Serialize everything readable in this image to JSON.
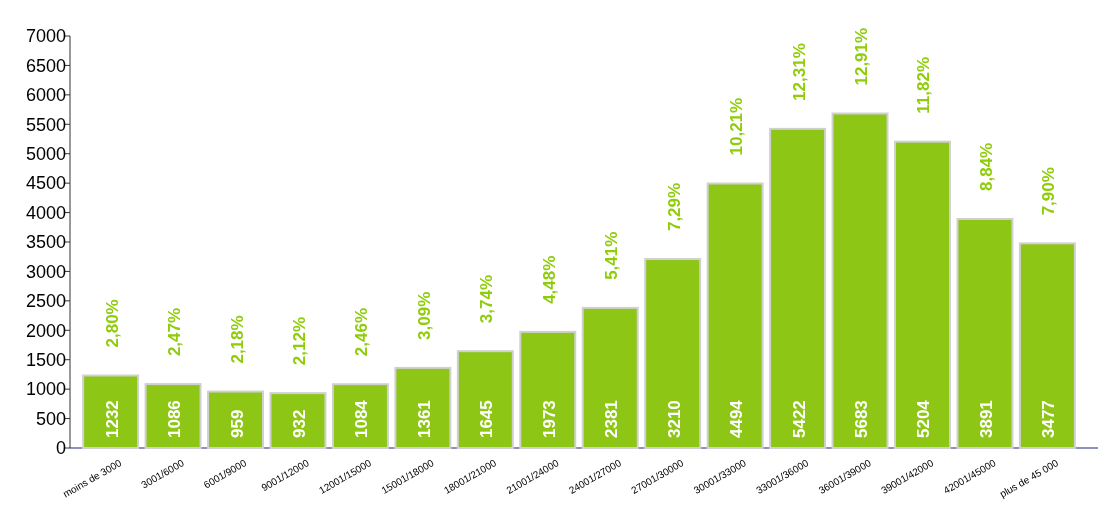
{
  "chart_data": {
    "type": "bar",
    "categories": [
      "moins de 3000",
      "3001/6000",
      "6001/9000",
      "9001/12000",
      "12001/15000",
      "15001/18000",
      "18001/21000",
      "21001/24000",
      "24001/27000",
      "27001/30000",
      "30001/33000",
      "33001/36000",
      "36001/39000",
      "39001/42000",
      "42001/45000",
      "plus de 45 000"
    ],
    "values": [
      1232,
      1086,
      959,
      932,
      1084,
      1361,
      1645,
      1973,
      2381,
      3210,
      4494,
      5422,
      5683,
      5204,
      3891,
      3477
    ],
    "color": "#8dc615",
    "ylim": [
      0,
      7000
    ],
    "yticks": [
      0,
      500,
      1000,
      1500,
      2000,
      2500,
      3000,
      3500,
      4000,
      4500,
      5000,
      5500,
      6000,
      6500,
      7000
    ],
    "data_labels": true,
    "grid": false,
    "annotations": [
      {
        "text": "2,80%",
        "x": "moins de 3000",
        "y": 1232
      },
      {
        "text": "2,47%",
        "x": "3001/6000",
        "y": 1086
      },
      {
        "text": "2,18%",
        "x": "6001/9000",
        "y": 959
      },
      {
        "text": "2,12%",
        "x": "9001/12000",
        "y": 932
      },
      {
        "text": "2,46%",
        "x": "12001/15000",
        "y": 1084
      },
      {
        "text": "3,09%",
        "x": "15001/18000",
        "y": 1361
      },
      {
        "text": "3,74%",
        "x": "18001/21000",
        "y": 1645
      },
      {
        "text": "4,48%",
        "x": "21001/24000",
        "y": 1973
      },
      {
        "text": "5,41%",
        "x": "24001/27000",
        "y": 2381
      },
      {
        "text": "7,29%",
        "x": "27001/30000",
        "y": 3210
      },
      {
        "text": "10,21%",
        "x": "30001/33000",
        "y": 4494
      },
      {
        "text": "12,31%",
        "x": "33001/36000",
        "y": 5422
      },
      {
        "text": "12,91%",
        "x": "36001/39000",
        "y": 5683
      },
      {
        "text": "11,82%",
        "x": "39001/42000",
        "y": 5204
      },
      {
        "text": "8,84%",
        "x": "42001/45000",
        "y": 3891
      },
      {
        "text": "7,90%",
        "x": "plus de 45 000",
        "y": 3477
      }
    ]
  }
}
